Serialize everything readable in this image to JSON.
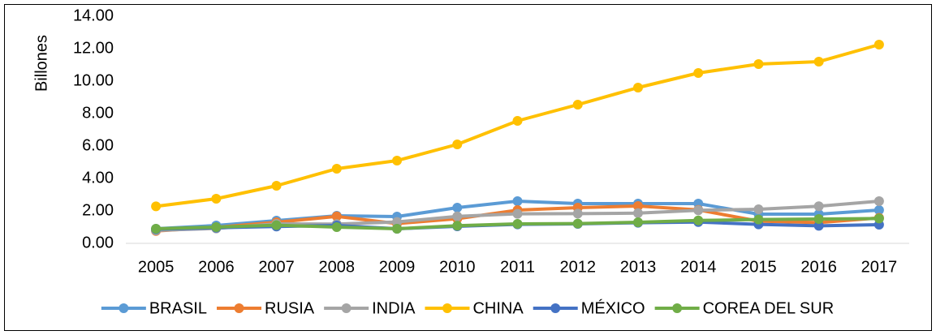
{
  "chart_data": {
    "type": "line",
    "y_label": "Billones",
    "categories": [
      "2005",
      "2006",
      "2007",
      "2008",
      "2009",
      "2010",
      "2011",
      "2012",
      "2013",
      "2014",
      "2015",
      "2016",
      "2017"
    ],
    "series": [
      {
        "name": "BRASIL",
        "color": "#5b9bd5",
        "values": [
          0.9,
          1.1,
          1.4,
          1.7,
          1.65,
          2.2,
          2.6,
          2.45,
          2.45,
          2.45,
          1.8,
          1.8,
          2.05
        ]
      },
      {
        "name": "RUSIA",
        "color": "#ed7d31",
        "values": [
          0.76,
          0.99,
          1.3,
          1.66,
          1.22,
          1.52,
          2.05,
          2.2,
          2.3,
          2.06,
          1.37,
          1.28,
          1.57
        ]
      },
      {
        "name": "INDIA",
        "color": "#a5a5a5",
        "values": [
          0.8,
          0.92,
          1.2,
          1.19,
          1.32,
          1.66,
          1.82,
          1.83,
          1.86,
          2.04,
          2.1,
          2.29,
          2.6
        ]
      },
      {
        "name": "CHINA",
        "color": "#ffc000",
        "values": [
          2.28,
          2.75,
          3.55,
          4.6,
          5.1,
          6.1,
          7.55,
          8.55,
          9.6,
          10.5,
          11.05,
          11.2,
          12.25
        ]
      },
      {
        "name": "MÉXICO",
        "color": "#4472c4",
        "values": [
          0.87,
          0.96,
          1.04,
          1.1,
          0.9,
          1.05,
          1.17,
          1.2,
          1.27,
          1.31,
          1.17,
          1.08,
          1.15
        ]
      },
      {
        "name": "COREA DEL SUR",
        "color": "#70ad47",
        "values": [
          0.9,
          1.0,
          1.12,
          1.0,
          0.9,
          1.09,
          1.2,
          1.22,
          1.3,
          1.41,
          1.47,
          1.5,
          1.53
        ]
      }
    ],
    "ylim": [
      0,
      14
    ],
    "yticks": [
      {
        "value": 0,
        "label": "0.00"
      },
      {
        "value": 2,
        "label": "2.00"
      },
      {
        "value": 4,
        "label": "4.00"
      },
      {
        "value": 6,
        "label": "6.00"
      },
      {
        "value": 8,
        "label": "8.00"
      },
      {
        "value": 10,
        "label": "10.00"
      },
      {
        "value": 12,
        "label": "12.00"
      },
      {
        "value": 14,
        "label": "14.00"
      }
    ],
    "legend": "bottom"
  }
}
